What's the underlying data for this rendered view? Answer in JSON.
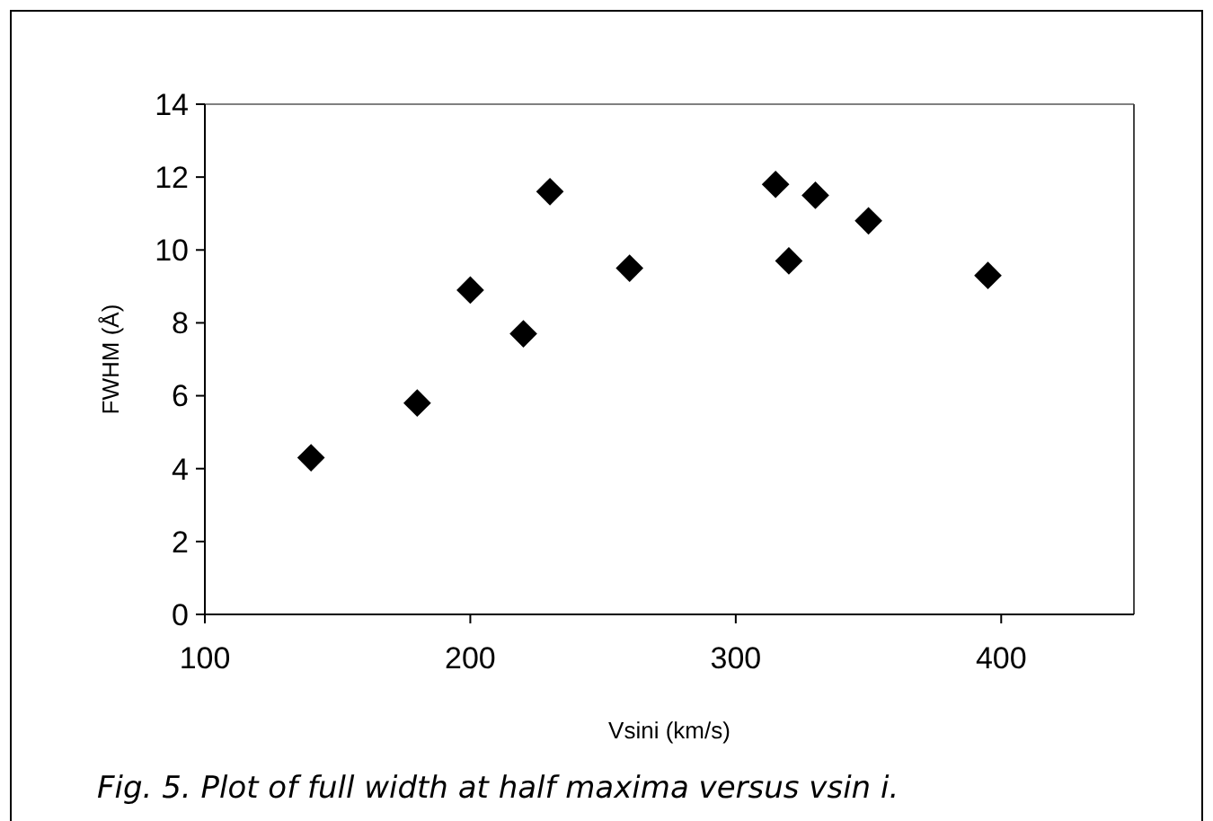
{
  "chart_data": {
    "type": "scatter",
    "xlabel": "Vsini (km/s)",
    "ylabel": "FWHM (Å)",
    "annotations": [
      "Fig. 5. Plot of full width at half maxima versus vsin i."
    ],
    "x": [
      140,
      180,
      200,
      220,
      230,
      260,
      315,
      320,
      330,
      350,
      395
    ],
    "series": [
      {
        "color": "#000000",
        "values": [
          4.3,
          5.8,
          8.9,
          7.7,
          11.6,
          9.5,
          11.8,
          9.7,
          11.5,
          10.8,
          9.3
        ]
      }
    ],
    "xlim": [
      100,
      450
    ],
    "xticks": [
      100,
      200,
      300,
      400
    ],
    "ylim": [
      0,
      14
    ],
    "yticks": [
      0,
      2,
      4,
      6,
      8,
      10,
      12,
      14
    ],
    "grid": false,
    "marker": "diamond"
  }
}
